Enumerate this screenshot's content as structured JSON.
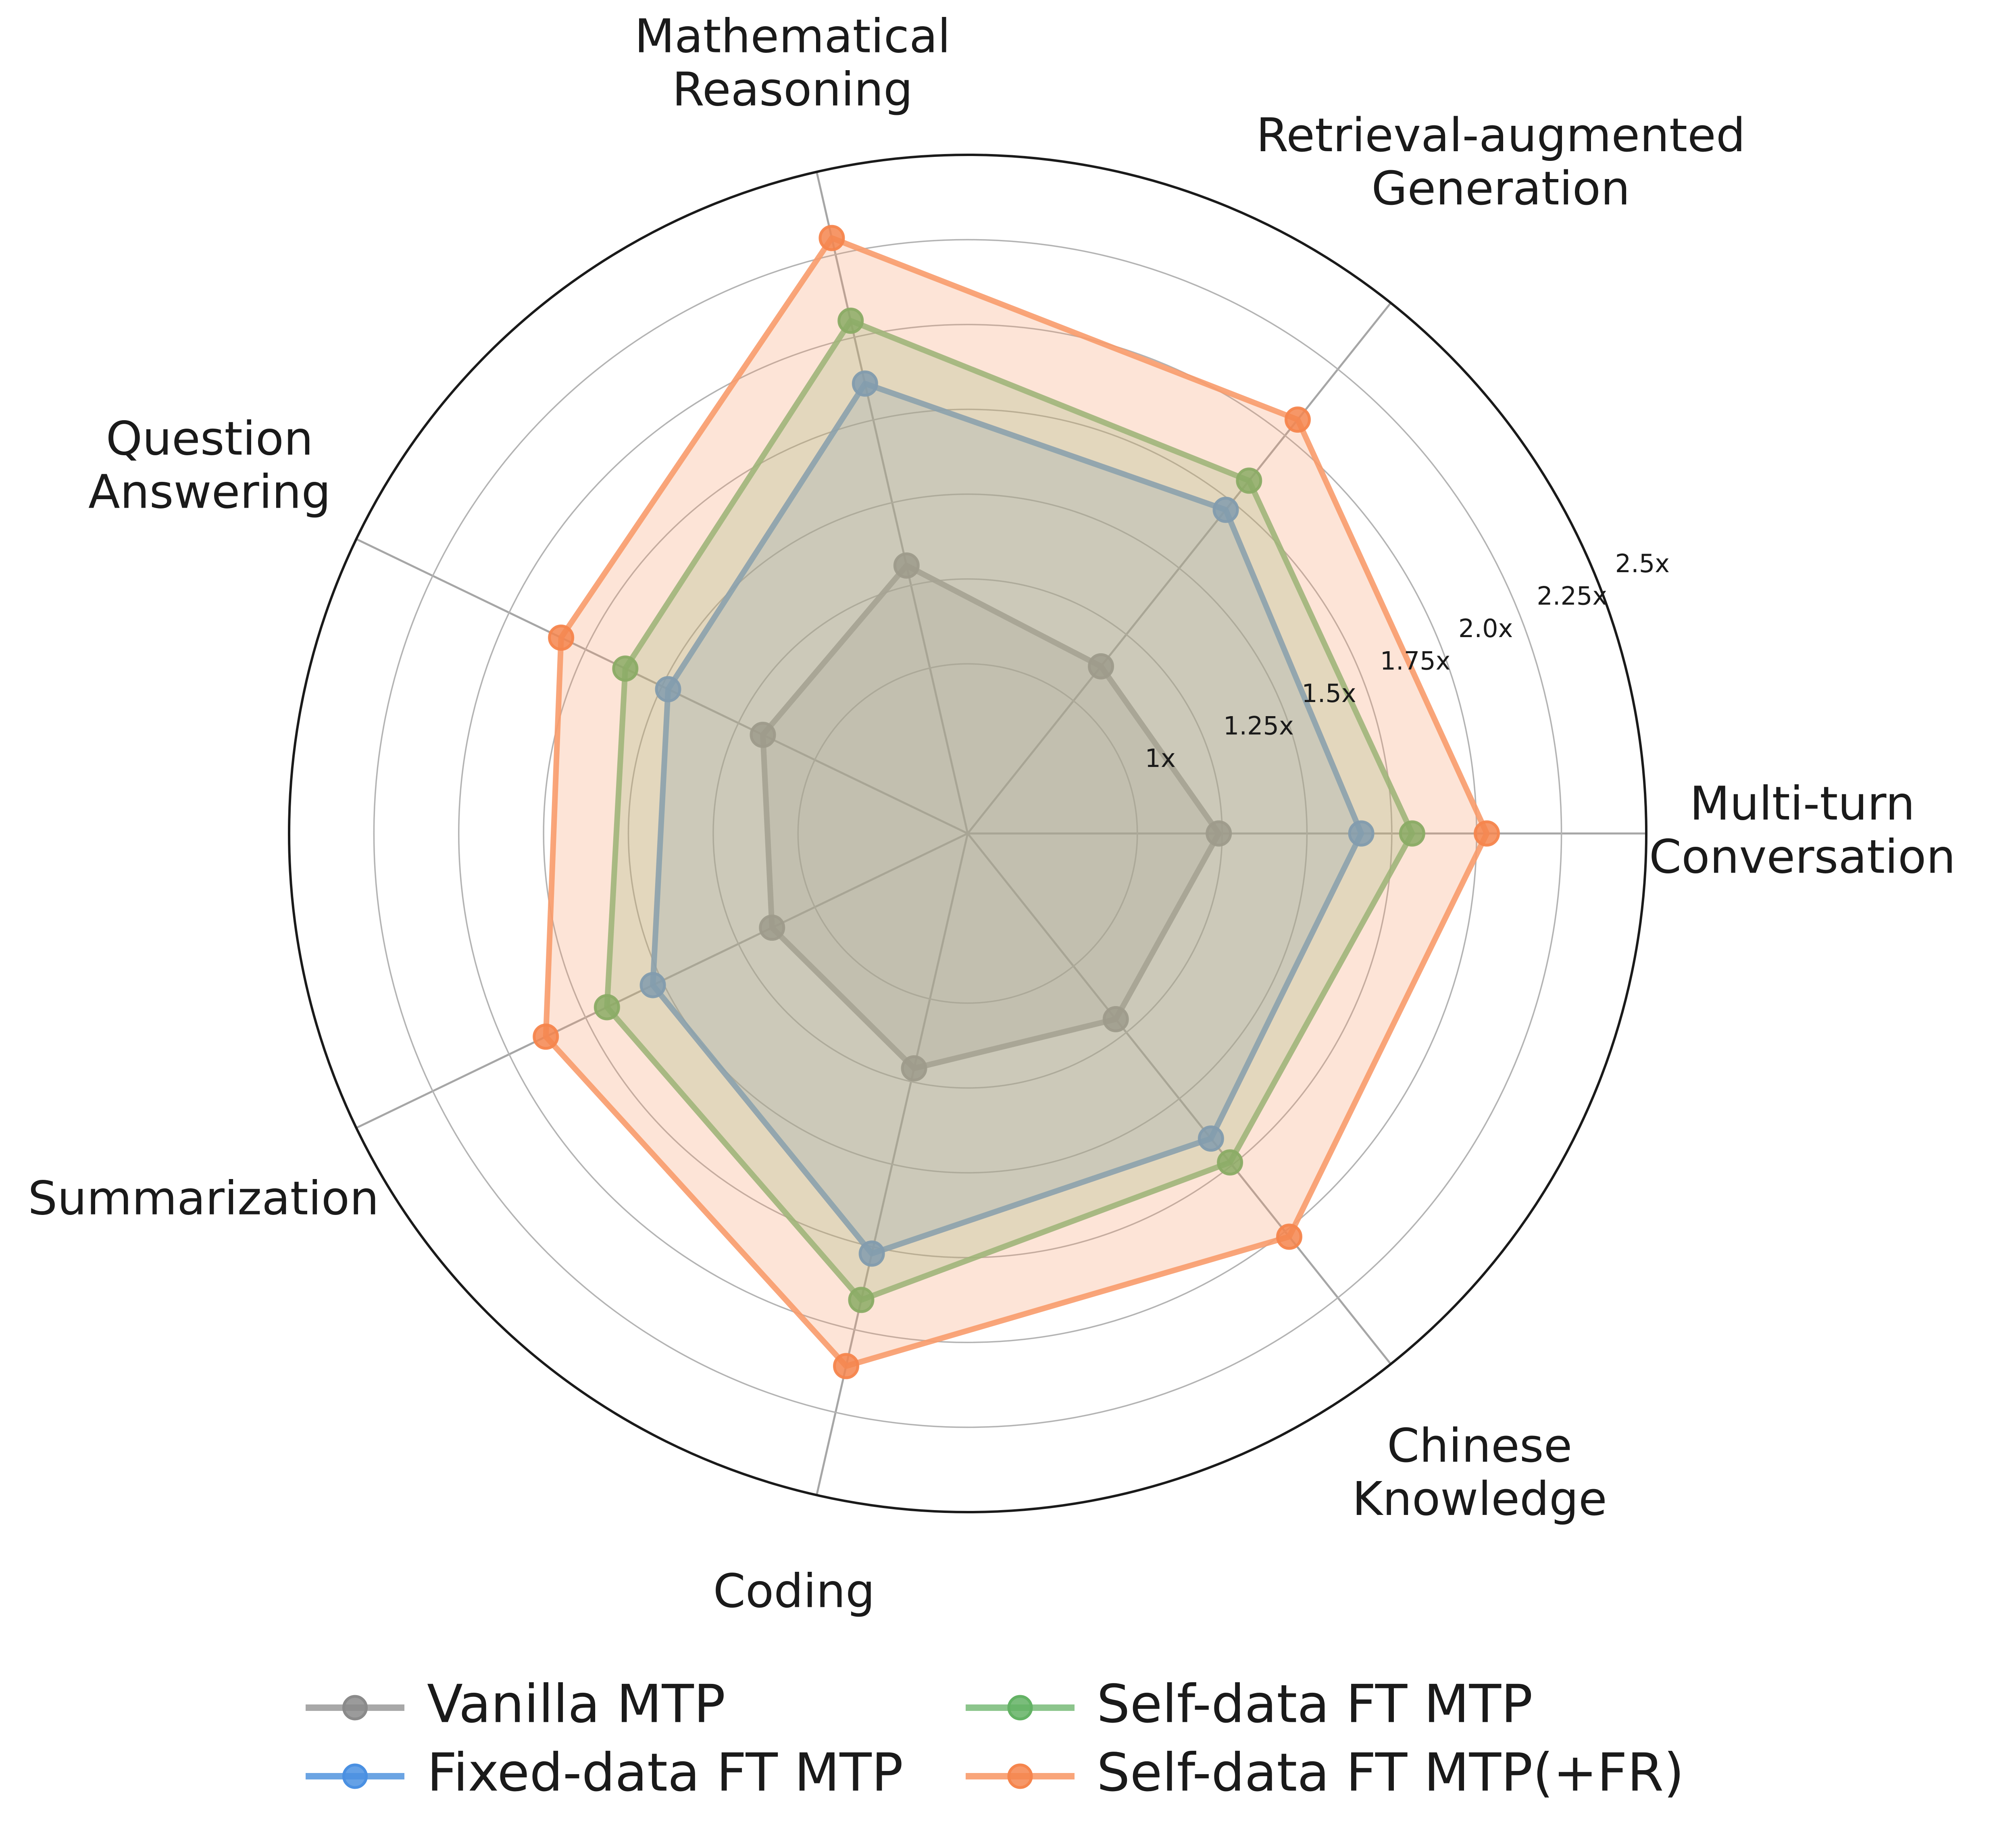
{
  "chart_data": {
    "type": "radar",
    "title": "",
    "categories": [
      "Multi-turn Conversation",
      "Retrieval-augmented Generation",
      "Mathematical Reasoning",
      "Question Answering",
      "Summarization",
      "Coding",
      "Chinese Knowledge"
    ],
    "category_lines": [
      [
        "Multi-turn",
        "Conversation"
      ],
      [
        "Retrieval-augmented",
        "Generation"
      ],
      [
        "Mathematical",
        "Reasoning"
      ],
      [
        "Question",
        "Answering"
      ],
      [
        "Summarization"
      ],
      [
        "Coding"
      ],
      [
        "Chinese",
        "Knowledge"
      ]
    ],
    "r_axis": {
      "min": 0.5,
      "max": 2.5,
      "ticks": [
        1.0,
        1.25,
        1.5,
        1.75,
        2.0,
        2.25,
        2.5
      ],
      "tick_labels": [
        "1x",
        "1.25x",
        "1.5x",
        "1.75x",
        "2.0x",
        "2.25x",
        "2.5x"
      ],
      "tick_label_color": "#999999"
    },
    "grid": {
      "ring_color": "#b3b3b3",
      "spoke_color": "#a6a6a6",
      "outer_ring_color": "#1a1a1a",
      "grid_on": true
    },
    "legend_position": "bottom",
    "series": [
      {
        "name": "Vanilla MTP",
        "color": "#9e9e9e",
        "marker_color": "#8a8a8a",
        "values": [
          1.24,
          1.13,
          1.31,
          1.17,
          1.14,
          1.21,
          1.2
        ]
      },
      {
        "name": "Fixed-data FT MTP",
        "color": "#5b9ae0",
        "marker_color": "#4a90e2",
        "values": [
          1.66,
          1.72,
          1.86,
          1.48,
          1.53,
          1.77,
          1.65
        ]
      },
      {
        "name": "Self-data FT MTP",
        "color": "#7fbf7f",
        "marker_color": "#63b264",
        "values": [
          1.81,
          1.83,
          2.05,
          1.62,
          1.68,
          1.91,
          1.74
        ]
      },
      {
        "name": "Self-data FT MTP(+FR)",
        "color": "#f89b6c",
        "marker_color": "#f5854d",
        "values": [
          2.03,
          2.06,
          2.3,
          1.83,
          1.88,
          2.11,
          2.02
        ]
      }
    ]
  }
}
